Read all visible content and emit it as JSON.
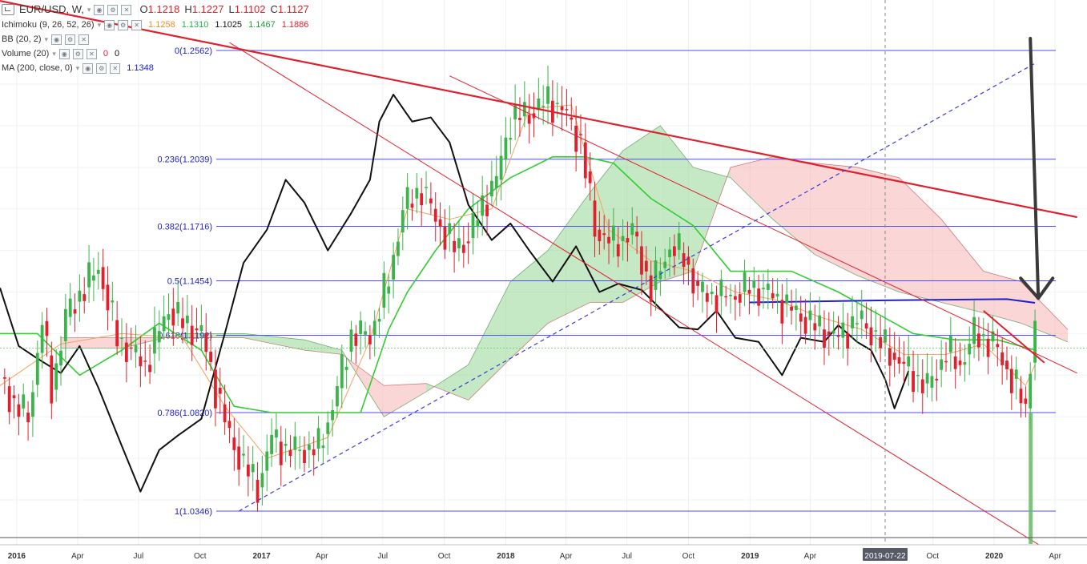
{
  "legend": {
    "symbol": "EUR/USD, W,",
    "ohlc": [
      {
        "key": "O",
        "value": "1.1218"
      },
      {
        "key": "H",
        "value": "1.1227"
      },
      {
        "key": "L",
        "value": "1.1102"
      },
      {
        "key": "C",
        "value": "1.1127"
      }
    ],
    "indicators": [
      {
        "name": "Ichimoku (9, 26, 52, 26)",
        "values": [
          {
            "v": "1.1258",
            "color": "#f28c28"
          },
          {
            "v": "1.1310",
            "color": "#22b14c"
          },
          {
            "v": "1.1025",
            "color": "#111111"
          },
          {
            "v": "1.1467",
            "color": "#1e9e3a"
          },
          {
            "v": "1.1886",
            "color": "#e0212d"
          }
        ]
      },
      {
        "name": "BB (20, 2)",
        "values": []
      },
      {
        "name": "Volume (20)",
        "values": [
          {
            "v": "0",
            "color": "#e0212d"
          },
          {
            "v": "0",
            "color": "#111111"
          }
        ]
      },
      {
        "name": "MA (200, close, 0)",
        "values": [
          {
            "v": "1.1348",
            "color": "#1a1adb"
          }
        ]
      }
    ]
  },
  "colors": {
    "fib": "#4d4dff",
    "up": "#3cb44b",
    "down": "#e0212d",
    "lagging": "#111111",
    "tenkan": "#f5a25d",
    "kijun": "#33cc33",
    "cloud_bull": "#7fcf7f",
    "cloud_bear": "#f4a3a3",
    "trend_major": "#e0212d",
    "trend_thin": "#e0212d",
    "rising_dashed": "#3a3ad8",
    "ma200": "#2020cc",
    "volume": "#66bb66",
    "arrow": "#3a3a3a"
  },
  "chart_data": {
    "type": "line",
    "title": "EUR/USD, W,",
    "xlabel": "",
    "ylabel": "",
    "x_tick_labels": [
      "2016",
      "Apr",
      "Jul",
      "Oct",
      "2017",
      "Apr",
      "Jul",
      "Oct",
      "2018",
      "Apr",
      "Jul",
      "Oct",
      "2019",
      "Apr",
      "2019-07-22",
      "Oct",
      "2020",
      "Apr"
    ],
    "highlighted_x_label": "2019-07-22",
    "ylim": [
      1.018,
      1.275
    ],
    "grid": true,
    "fib_levels": [
      {
        "label": "0(1.2562)",
        "ratio": 0,
        "price": 1.2562
      },
      {
        "label": "0.236(1.2039)",
        "ratio": 0.236,
        "price": 1.2039
      },
      {
        "label": "0.382(1.1716)",
        "ratio": 0.382,
        "price": 1.1716
      },
      {
        "label": "0.5(1.1454)",
        "ratio": 0.5,
        "price": 1.1454
      },
      {
        "label": "0.618(1.1192)",
        "ratio": 0.618,
        "price": 1.1192
      },
      {
        "label": "0.786(1.0820)",
        "ratio": 0.786,
        "price": 1.082
      },
      {
        "label": "1(1.0346)",
        "ratio": 1,
        "price": 1.0346
      }
    ],
    "weekly_close": [
      [
        "2015-12-07",
        1.099
      ],
      [
        "2015-12-28",
        1.086
      ],
      [
        "2016-01-18",
        1.08
      ],
      [
        "2016-02-08",
        1.126
      ],
      [
        "2016-02-22",
        1.093
      ],
      [
        "2016-03-14",
        1.128
      ],
      [
        "2016-04-04",
        1.139
      ],
      [
        "2016-05-02",
        1.152
      ],
      [
        "2016-05-30",
        1.118
      ],
      [
        "2016-06-20",
        1.111
      ],
      [
        "2016-07-11",
        1.105
      ],
      [
        "2016-08-15",
        1.132
      ],
      [
        "2016-09-05",
        1.125
      ],
      [
        "2016-10-03",
        1.12
      ],
      [
        "2016-10-24",
        1.094
      ],
      [
        "2016-11-14",
        1.07
      ],
      [
        "2016-12-05",
        1.057
      ],
      [
        "2016-12-26",
        1.046
      ],
      [
        "2017-01-16",
        1.07
      ],
      [
        "2017-02-06",
        1.064
      ],
      [
        "2017-03-06",
        1.064
      ],
      [
        "2017-03-27",
        1.065
      ],
      [
        "2017-04-17",
        1.085
      ],
      [
        "2017-05-15",
        1.12
      ],
      [
        "2017-06-12",
        1.119
      ],
      [
        "2017-07-10",
        1.146
      ],
      [
        "2017-07-31",
        1.18
      ],
      [
        "2017-08-28",
        1.19
      ],
      [
        "2017-09-18",
        1.175
      ],
      [
        "2017-10-16",
        1.161
      ],
      [
        "2017-11-06",
        1.166
      ],
      [
        "2017-11-27",
        1.182
      ],
      [
        "2017-12-18",
        1.194
      ],
      [
        "2018-01-08",
        1.223
      ],
      [
        "2018-02-05",
        1.226
      ],
      [
        "2018-03-05",
        1.232
      ],
      [
        "2018-03-26",
        1.228
      ],
      [
        "2018-04-23",
        1.212
      ],
      [
        "2018-05-14",
        1.17
      ],
      [
        "2018-06-11",
        1.163
      ],
      [
        "2018-07-09",
        1.169
      ],
      [
        "2018-08-06",
        1.141
      ],
      [
        "2018-09-03",
        1.162
      ],
      [
        "2018-09-24",
        1.157
      ],
      [
        "2018-10-15",
        1.14
      ],
      [
        "2018-11-12",
        1.138
      ],
      [
        "2018-12-03",
        1.138
      ],
      [
        "2018-12-31",
        1.142
      ],
      [
        "2019-01-21",
        1.141
      ],
      [
        "2019-02-25",
        1.133
      ],
      [
        "2019-03-18",
        1.128
      ],
      [
        "2019-04-15",
        1.122
      ],
      [
        "2019-05-13",
        1.118
      ],
      [
        "2019-06-10",
        1.127
      ],
      [
        "2019-07-01",
        1.121
      ],
      [
        "2019-07-22",
        1.113
      ],
      [
        "2019-08-26",
        1.102
      ],
      [
        "2019-09-23",
        1.094
      ],
      [
        "2019-10-21",
        1.111
      ],
      [
        "2019-11-11",
        1.105
      ],
      [
        "2019-12-02",
        1.12
      ],
      [
        "2019-12-30",
        1.115
      ],
      [
        "2020-01-20",
        1.103
      ],
      [
        "2020-02-17",
        1.084
      ],
      [
        "2020-03-02",
        1.128
      ]
    ],
    "lagging_span": [
      [
        "2015-12-07",
        1.142
      ],
      [
        "2016-01-04",
        1.114
      ],
      [
        "2016-02-01",
        1.108
      ],
      [
        "2016-03-07",
        1.101
      ],
      [
        "2016-04-04",
        1.114
      ],
      [
        "2016-05-02",
        1.094
      ],
      [
        "2016-06-06",
        1.066
      ],
      [
        "2016-07-04",
        1.044
      ],
      [
        "2016-08-01",
        1.064
      ],
      [
        "2016-08-29",
        1.071
      ],
      [
        "2016-10-03",
        1.079
      ],
      [
        "2016-11-07",
        1.12
      ],
      [
        "2016-12-05",
        1.154
      ],
      [
        "2017-01-09",
        1.17
      ],
      [
        "2017-02-06",
        1.194
      ],
      [
        "2017-03-06",
        1.183
      ],
      [
        "2017-04-10",
        1.16
      ],
      [
        "2017-05-15",
        1.178
      ],
      [
        "2017-06-12",
        1.194
      ],
      [
        "2017-06-26",
        1.222
      ],
      [
        "2017-07-17",
        1.235
      ],
      [
        "2017-08-14",
        1.222
      ],
      [
        "2017-09-11",
        1.224
      ],
      [
        "2017-10-09",
        1.212
      ],
      [
        "2017-11-06",
        1.182
      ],
      [
        "2017-12-11",
        1.165
      ],
      [
        "2018-01-08",
        1.173
      ],
      [
        "2018-02-05",
        1.16
      ],
      [
        "2018-03-12",
        1.145
      ],
      [
        "2018-04-16",
        1.162
      ],
      [
        "2018-05-21",
        1.14
      ],
      [
        "2018-06-18",
        1.144
      ],
      [
        "2018-07-23",
        1.141
      ],
      [
        "2018-08-20",
        1.132
      ],
      [
        "2018-09-17",
        1.123
      ],
      [
        "2018-10-15",
        1.122
      ],
      [
        "2018-11-12",
        1.131
      ],
      [
        "2018-12-10",
        1.118
      ],
      [
        "2019-01-14",
        1.116
      ],
      [
        "2019-02-18",
        1.1
      ],
      [
        "2019-03-18",
        1.118
      ],
      [
        "2019-04-22",
        1.116
      ],
      [
        "2019-05-13",
        1.124
      ],
      [
        "2019-06-10",
        1.116
      ],
      [
        "2019-07-01",
        1.112
      ],
      [
        "2019-07-22",
        1.098
      ],
      [
        "2019-08-05",
        1.084
      ],
      [
        "2019-08-26",
        1.102
      ]
    ],
    "tenkan_sen": [
      [
        "2015-12-07",
        1.095
      ],
      [
        "2016-03-07",
        1.115
      ],
      [
        "2016-06-06",
        1.12
      ],
      [
        "2016-09-05",
        1.118
      ],
      [
        "2016-11-07",
        1.085
      ],
      [
        "2017-01-09",
        1.06
      ],
      [
        "2017-04-10",
        1.07
      ],
      [
        "2017-06-12",
        1.117
      ],
      [
        "2017-08-07",
        1.18
      ],
      [
        "2017-10-09",
        1.175
      ],
      [
        "2017-12-11",
        1.18
      ],
      [
        "2018-02-05",
        1.228
      ],
      [
        "2018-04-09",
        1.23
      ],
      [
        "2018-06-04",
        1.17
      ],
      [
        "2018-08-06",
        1.155
      ],
      [
        "2018-10-08",
        1.15
      ],
      [
        "2018-12-10",
        1.14
      ],
      [
        "2019-02-11",
        1.136
      ],
      [
        "2019-04-15",
        1.128
      ],
      [
        "2019-06-17",
        1.122
      ],
      [
        "2019-08-19",
        1.11
      ],
      [
        "2019-10-21",
        1.11
      ],
      [
        "2019-12-16",
        1.115
      ],
      [
        "2020-02-17",
        1.095
      ],
      [
        "2020-03-02",
        1.105
      ]
    ],
    "kijun_sen": [
      [
        "2015-12-07",
        1.12
      ],
      [
        "2016-02-01",
        1.12
      ],
      [
        "2016-04-04",
        1.1
      ],
      [
        "2016-06-06",
        1.112
      ],
      [
        "2016-08-01",
        1.125
      ],
      [
        "2016-10-03",
        1.112
      ],
      [
        "2016-11-21",
        1.085
      ],
      [
        "2017-01-16",
        1.082
      ],
      [
        "2017-04-03",
        1.082
      ],
      [
        "2017-05-29",
        1.082
      ],
      [
        "2017-07-10",
        1.122
      ],
      [
        "2017-08-07",
        1.14
      ],
      [
        "2017-09-18",
        1.16
      ],
      [
        "2017-11-06",
        1.18
      ],
      [
        "2018-01-08",
        1.195
      ],
      [
        "2018-03-12",
        1.205
      ],
      [
        "2018-04-30",
        1.205
      ],
      [
        "2018-06-11",
        1.202
      ],
      [
        "2018-08-06",
        1.185
      ],
      [
        "2018-10-08",
        1.172
      ],
      [
        "2018-12-03",
        1.15
      ],
      [
        "2019-03-04",
        1.15
      ],
      [
        "2019-05-13",
        1.14
      ],
      [
        "2019-07-08",
        1.13
      ],
      [
        "2019-09-02",
        1.12
      ],
      [
        "2019-11-04",
        1.117
      ],
      [
        "2020-01-06",
        1.117
      ],
      [
        "2020-03-02",
        1.112
      ]
    ],
    "cloud_span_a": [
      [
        "2016-03-07",
        1.113
      ],
      [
        "2016-06-06",
        1.113
      ],
      [
        "2016-09-05",
        1.12
      ],
      [
        "2016-12-05",
        1.12
      ],
      [
        "2017-03-06",
        1.117
      ],
      [
        "2017-05-01",
        1.112
      ],
      [
        "2017-07-03",
        1.08
      ],
      [
        "2017-09-04",
        1.092
      ],
      [
        "2017-11-06",
        1.105
      ],
      [
        "2018-01-08",
        1.145
      ],
      [
        "2018-03-05",
        1.16
      ],
      [
        "2018-05-07",
        1.188
      ],
      [
        "2018-06-25",
        1.208
      ],
      [
        "2018-08-20",
        1.22
      ],
      [
        "2018-10-08",
        1.2
      ],
      [
        "2018-12-03",
        1.195
      ],
      [
        "2019-02-04",
        1.175
      ],
      [
        "2019-04-08",
        1.158
      ],
      [
        "2019-06-10",
        1.148
      ],
      [
        "2019-08-12",
        1.14
      ],
      [
        "2019-10-14",
        1.135
      ],
      [
        "2019-12-16",
        1.13
      ],
      [
        "2020-02-10",
        1.125
      ],
      [
        "2020-04-20",
        1.116
      ]
    ],
    "cloud_span_b": [
      [
        "2016-03-07",
        1.118
      ],
      [
        "2016-06-06",
        1.118
      ],
      [
        "2016-09-05",
        1.118
      ],
      [
        "2016-12-05",
        1.118
      ],
      [
        "2017-03-06",
        1.112
      ],
      [
        "2017-05-01",
        1.11
      ],
      [
        "2017-07-03",
        1.095
      ],
      [
        "2017-09-04",
        1.096
      ],
      [
        "2017-11-06",
        1.088
      ],
      [
        "2018-01-08",
        1.108
      ],
      [
        "2018-03-05",
        1.125
      ],
      [
        "2018-05-07",
        1.135
      ],
      [
        "2018-06-25",
        1.135
      ],
      [
        "2018-08-20",
        1.145
      ],
      [
        "2018-10-08",
        1.15
      ],
      [
        "2018-12-03",
        1.2
      ],
      [
        "2019-02-04",
        1.205
      ],
      [
        "2019-04-08",
        1.202
      ],
      [
        "2019-06-10",
        1.2
      ],
      [
        "2019-08-12",
        1.195
      ],
      [
        "2019-10-14",
        1.175
      ],
      [
        "2019-12-16",
        1.15
      ],
      [
        "2020-02-10",
        1.145
      ],
      [
        "2020-04-20",
        1.122
      ]
    ],
    "ma200": [
      [
        "2018-12-31",
        1.135
      ],
      [
        "2019-07-22",
        1.136
      ],
      [
        "2020-01-20",
        1.1366
      ],
      [
        "2020-03-02",
        1.1348
      ]
    ],
    "trendlines": [
      {
        "name": "",
        "from": [
          "2015-07-06",
          1.29
        ],
        "to": [
          "2020-05-04",
          1.176
        ]
      },
      {
        "name": "",
        "from": [
          "2016-11-14",
          1.26
        ],
        "to": [
          "2020-05-04",
          1.007
        ]
      },
      {
        "name": "",
        "from": [
          "2017-10-09",
          1.244
        ],
        "to": [
          "2020-05-04",
          1.101
        ]
      },
      {
        "name": "",
        "from": [
          "2019-12-16",
          1.131
        ],
        "to": [
          "2020-03-16",
          1.106
        ]
      }
    ],
    "rising_dashed": {
      "from": [
        "2016-11-28",
        1.0346
      ],
      "to": [
        "2020-03-02",
        1.25
      ]
    },
    "annotation_arrow": {
      "x": "2020-02-24",
      "y_top": 1.262,
      "y_tip": 1.137
    },
    "volume_bar": {
      "x": "2020-02-24"
    }
  }
}
